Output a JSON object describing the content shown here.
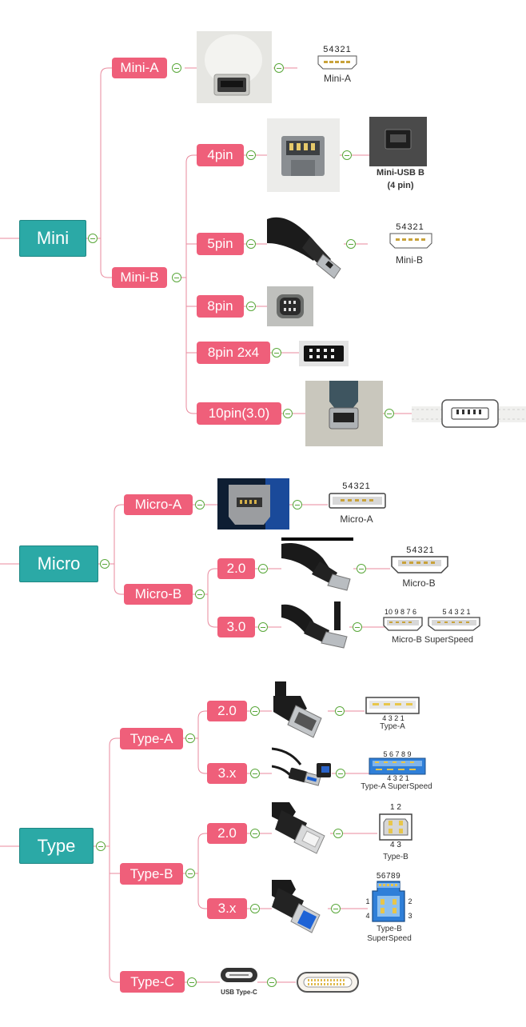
{
  "sections": [
    {
      "root": "Mini",
      "branches": [
        {
          "label": "Mini-A"
        },
        {
          "label": "Mini-B",
          "children": [
            "4pin",
            "5pin",
            "8pin",
            "8pin 2x4",
            "10pin(3.0)"
          ]
        }
      ]
    },
    {
      "root": "Micro",
      "branches": [
        {
          "label": "Micro-A"
        },
        {
          "label": "Micro-B",
          "children": [
            "2.0",
            "3.0"
          ]
        }
      ]
    },
    {
      "root": "Type",
      "branches": [
        {
          "label": "Type-A",
          "children": [
            "2.0",
            "3.x"
          ]
        },
        {
          "label": "Type-B",
          "children": [
            "2.0",
            "3.x"
          ]
        },
        {
          "label": "Type-C"
        }
      ]
    }
  ],
  "diagram_labels": {
    "mini_a": "Mini-A",
    "mini_a_pins": "54321",
    "mini_usb_b_line1": "Mini-USB B",
    "mini_usb_b_line2": "(4 pin)",
    "mini_b": "Mini-B",
    "mini_b_pins": "54321",
    "micro_a": "Micro-A",
    "micro_a_pins": "54321",
    "micro_b": "Micro-B",
    "micro_b_pins": "54321",
    "micro_b_ss": "Micro-B SuperSpeed",
    "micro_b_ss_pins_left": "10 9 8 7 6",
    "micro_b_ss_pins_right": "5 4 3 2 1",
    "type_a": "Type-A",
    "type_a_pins": "4  3  2  1",
    "type_a_ss": "Type-A SuperSpeed",
    "type_a_ss_top_pins": "5  6  7  8  9",
    "type_a_ss_bottom_pins": "4  3  2  1",
    "type_b": "Type-B",
    "type_b_top_pins": "1  2",
    "type_b_bottom_pins": "4  3",
    "type_b_ss_line1": "Type-B",
    "type_b_ss_line2": "SuperSpeed",
    "type_b_ss_top_pins": "56789",
    "type_b_ss_pin_4": "4",
    "type_b_ss_pin_1": "1",
    "type_b_ss_pin_2": "2",
    "type_b_ss_pin_3": "3",
    "usb_type_c": "USB Type-C"
  },
  "colors": {
    "root_fill": "#2ba9a6",
    "branch_fill": "#ef5f7a",
    "connector_line": "#e98a9e",
    "toggle": "#5aa83b"
  }
}
